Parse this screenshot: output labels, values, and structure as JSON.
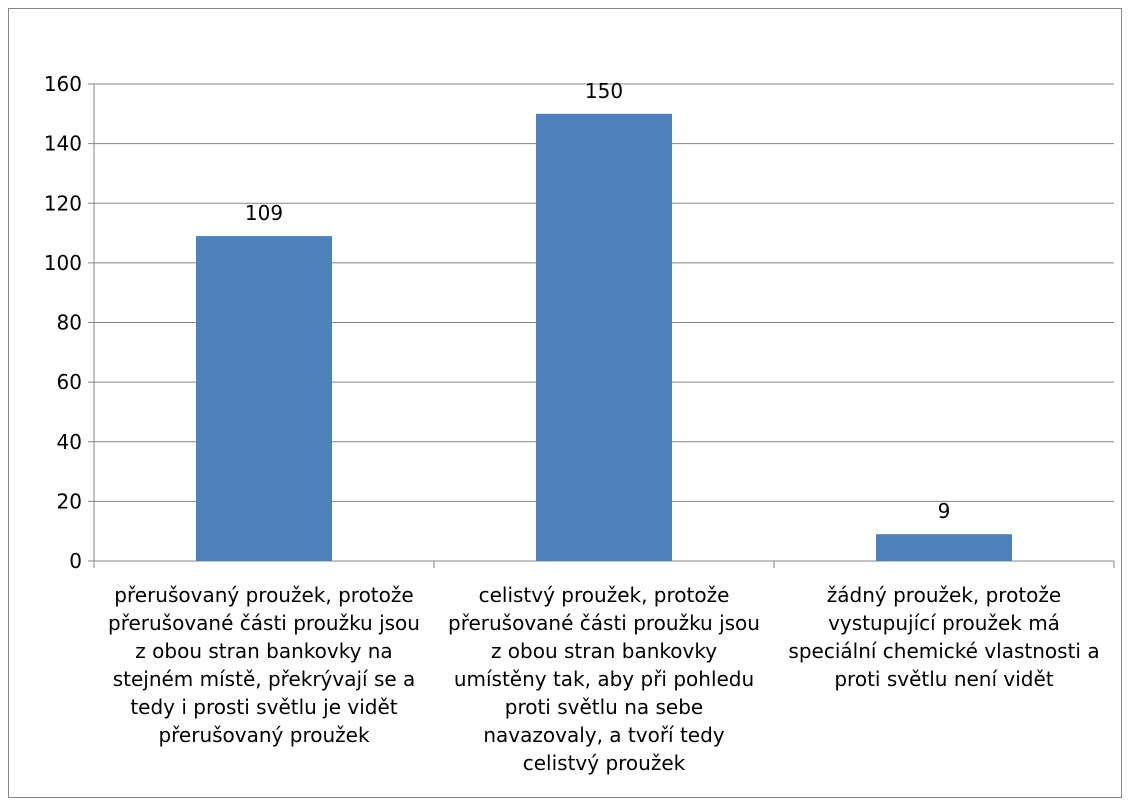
{
  "chart_data": {
    "type": "bar",
    "categories": [
      "přerušovaný proužek, protože přerušované části proužku jsou z obou stran bankovky na stejném místě, překrývají se a tedy i prosti světlu je vidět přerušovaný proužek",
      "celistvý proužek, protože přerušované části proužku jsou z obou stran bankovky umístěny tak, aby při pohledu proti světlu na sebe navazovaly, a tvoří tedy celistvý proužek",
      "žádný proužek, protože vystupující proužek má speciální chemické vlastnosti a proti světlu není vidět"
    ],
    "category_lines": [
      [
        "přerušovaný proužek, protože",
        "přerušované části proužku jsou",
        "z obou stran bankovky na",
        "stejném místě, překrývají se a",
        "tedy i prosti světlu je vidět",
        "přerušovaný proužek"
      ],
      [
        "celistvý proužek, protože",
        "přerušované části proužku jsou",
        "z obou stran bankovky",
        "umístěny tak, aby při pohledu",
        "proti světlu na sebe",
        "navazovaly, a tvoří tedy",
        "celistvý proužek"
      ],
      [
        "žádný proužek, protože",
        "vystupující proužek má",
        "speciální chemické vlastnosti a",
        "proti světlu není vidět"
      ]
    ],
    "values": [
      109,
      150,
      9
    ],
    "data_labels": [
      "109",
      "150",
      "9"
    ],
    "ylim": [
      0,
      160
    ],
    "yticks": [
      0,
      20,
      40,
      60,
      80,
      100,
      120,
      140,
      160
    ],
    "ytick_labels": [
      "0",
      "20",
      "40",
      "60",
      "80",
      "100",
      "120",
      "140",
      "160"
    ],
    "grid": true,
    "bar_color": "#4F81BD",
    "grid_color": "#868686",
    "title": "",
    "xlabel": "",
    "ylabel": ""
  }
}
